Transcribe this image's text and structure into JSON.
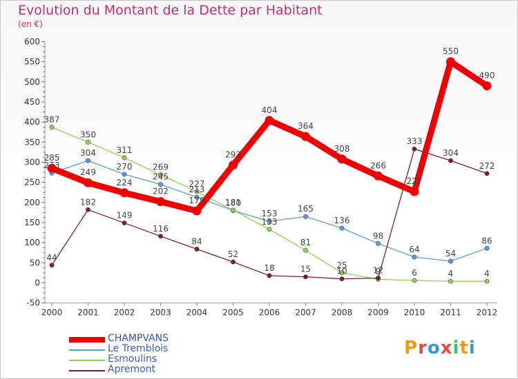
{
  "title": "Evolution du Montant de la Dette par Habitant",
  "unit": "(en €)",
  "logo": {
    "letters": [
      "P",
      "r",
      "o",
      "x",
      "i",
      "t",
      "i"
    ],
    "colors": [
      "#f39c12",
      "#e74c3c",
      "#3498db",
      "#e74c3c",
      "#2ecc71",
      "#f39c12",
      "#3498db"
    ]
  },
  "chart_data": {
    "type": "line",
    "title": "Evolution du Montant de la Dette par Habitant",
    "ylabel": "(en €)",
    "xlabel": "",
    "x": [
      "2000",
      "2001",
      "2002",
      "2003",
      "2004",
      "2005",
      "2006",
      "2007",
      "2008",
      "2009",
      "2010",
      "2011",
      "2012"
    ],
    "ylim": [
      -50,
      600
    ],
    "yticks": [
      -50,
      0,
      50,
      100,
      150,
      200,
      250,
      300,
      350,
      400,
      450,
      500,
      550,
      600
    ],
    "grid": false,
    "legend": "bottom-left",
    "series": [
      {
        "name": "CHAMPVANS",
        "color": "#ee0000",
        "thick": true,
        "values": [
          285,
          249,
          224,
          202,
          179,
          293,
          404,
          364,
          308,
          266,
          227,
          550,
          490
        ],
        "labels": [
          "285",
          "249",
          "224",
          "202",
          "179",
          "293",
          "404",
          "364",
          "308",
          "266",
          "227",
          "550",
          "490"
        ]
      },
      {
        "name": "Le Tremblois",
        "color": "#5b9bd5",
        "thick": false,
        "values": [
          273,
          304,
          270,
          245,
          213,
          180,
          153,
          165,
          136,
          98,
          64,
          54,
          86
        ],
        "labels": [
          "273",
          "304",
          "270",
          "245",
          "213",
          "180",
          "153",
          "165",
          "136",
          "98",
          "64",
          "54",
          "86"
        ]
      },
      {
        "name": "Esmoulins",
        "color": "#8fd14f",
        "thick": false,
        "values": [
          387,
          350,
          311,
          269,
          227,
          181,
          133,
          81,
          25,
          9,
          6,
          4,
          4
        ],
        "labels": [
          "387",
          "350",
          "311",
          "269",
          "227",
          "181",
          "133",
          "81",
          "25",
          "9",
          "6",
          "4",
          "4"
        ]
      },
      {
        "name": "Apremont",
        "color": "#7b2020",
        "thick": false,
        "values": [
          44,
          182,
          149,
          116,
          84,
          52,
          18,
          15,
          10,
          12,
          333,
          304,
          272
        ],
        "labels": [
          "44",
          "182",
          "149",
          "116",
          "84",
          "52",
          "18",
          "15",
          "10",
          "12",
          "333",
          "304",
          "272"
        ]
      }
    ]
  }
}
